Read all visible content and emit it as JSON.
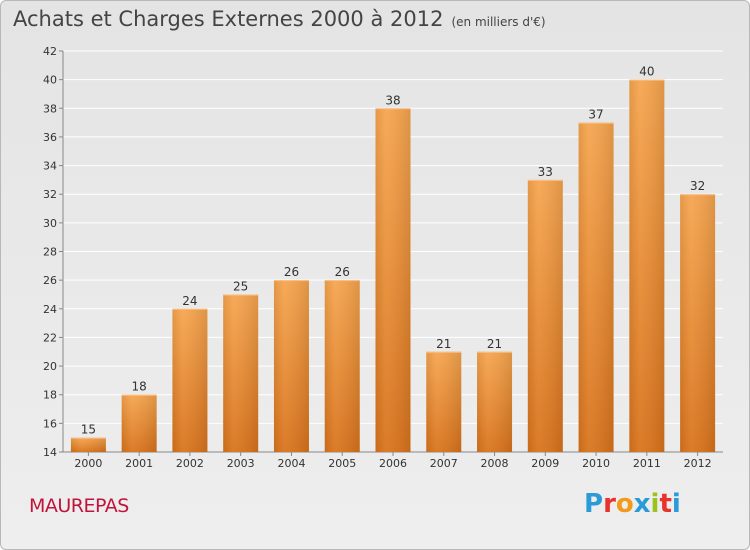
{
  "header": {
    "title": "Achats et Charges Externes 2000 à 2012",
    "unit": "(en milliers d'€)"
  },
  "footer": {
    "town": "MAUREPAS",
    "logo_letters": [
      "P",
      "r",
      "o",
      "x",
      "i",
      "t",
      "i"
    ],
    "logo_colors": [
      "#2a9bd6",
      "#e8322c",
      "#f29a1a",
      "#2a9bd6",
      "#9bc31c",
      "#e8322c",
      "#2a9bd6"
    ]
  },
  "colors": {
    "bar_top": "#f6a54e",
    "bar_bottom": "#d9731b",
    "grid": "#ffffff",
    "axis": "#888888",
    "text": "#333333"
  },
  "chart_data": {
    "type": "bar",
    "categories": [
      "2000",
      "2001",
      "2002",
      "2003",
      "2004",
      "2005",
      "2006",
      "2007",
      "2008",
      "2009",
      "2010",
      "2011",
      "2012"
    ],
    "values": [
      15,
      18,
      24,
      25,
      26,
      26,
      38,
      21,
      21,
      33,
      37,
      40,
      32
    ],
    "ylim": [
      14,
      42
    ],
    "yticks": [
      14,
      16,
      18,
      20,
      22,
      24,
      26,
      28,
      30,
      32,
      34,
      36,
      38,
      40,
      42
    ],
    "grid": true
  }
}
